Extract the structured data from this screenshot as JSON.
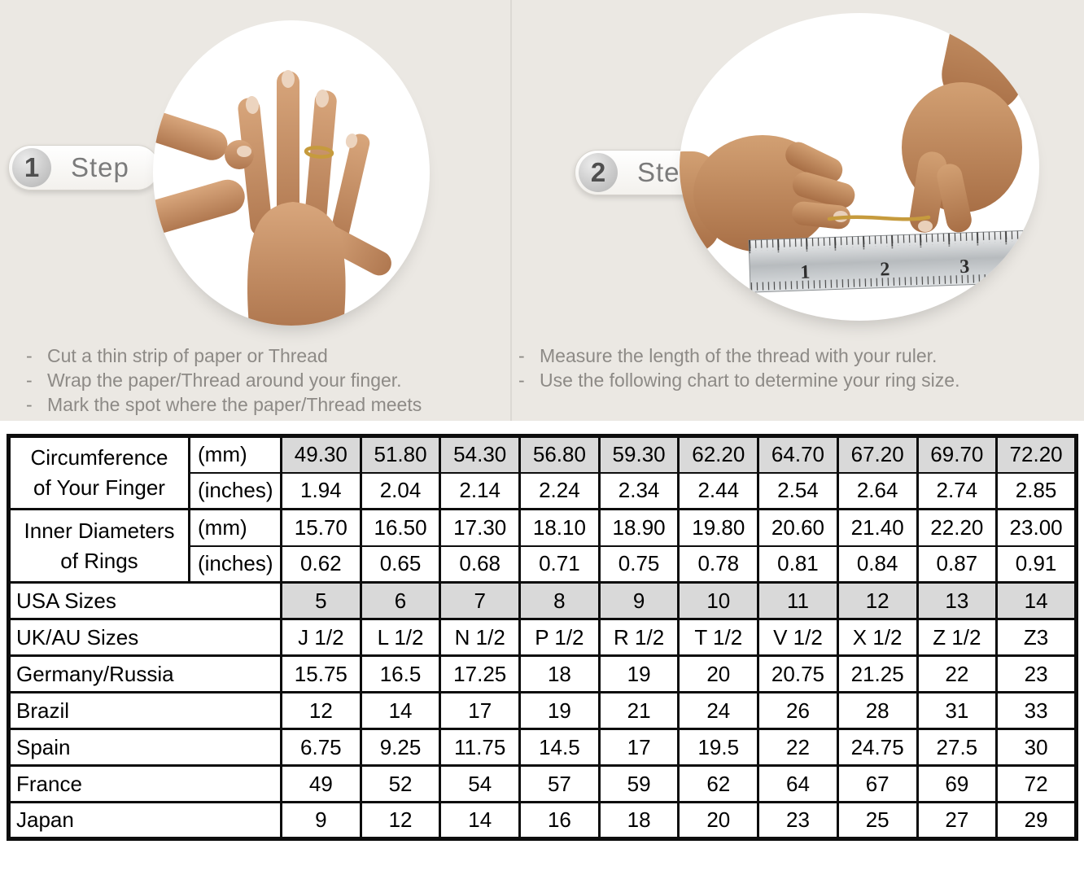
{
  "bullet_prefix": "-",
  "colors": {
    "page-bg": "#ffffff",
    "panel-bg": "#ebe8e3",
    "shade": "#d9d9d9",
    "border": "#0d0d0d",
    "text-gray": "#8d8a86",
    "step-gray": "#7b7b7b",
    "gold": "#c69b3d"
  },
  "steps": [
    {
      "number": "1",
      "label": "Step",
      "bullets": [
        "Cut a thin strip of paper or Thread",
        "Wrap the paper/Thread around your finger.",
        "Mark the spot where the paper/Thread meets"
      ]
    },
    {
      "number": "2",
      "label": "Step",
      "bullets": [
        "Measure the length of the thread with your ruler.",
        "Use the following chart to determine your ring size."
      ]
    }
  ],
  "illustrations": {
    "ruler_numbers": [
      "1",
      "2",
      "3"
    ]
  },
  "table": {
    "row_groups": [
      {
        "label_lines": [
          "Circumference",
          "of Your Finger"
        ],
        "rows": [
          {
            "unit": "(mm)",
            "shaded": true,
            "values": [
              "49.30",
              "51.80",
              "54.30",
              "56.80",
              "59.30",
              "62.20",
              "64.70",
              "67.20",
              "69.70",
              "72.20"
            ]
          },
          {
            "unit": "(inches)",
            "shaded": false,
            "values": [
              "1.94",
              "2.04",
              "2.14",
              "2.24",
              "2.34",
              "2.44",
              "2.54",
              "2.64",
              "2.74",
              "2.85"
            ]
          }
        ]
      },
      {
        "label_lines": [
          "Inner Diameters",
          "of Rings"
        ],
        "rows": [
          {
            "unit": "(mm)",
            "shaded": false,
            "values": [
              "15.70",
              "16.50",
              "17.30",
              "18.10",
              "18.90",
              "19.80",
              "20.60",
              "21.40",
              "22.20",
              "23.00"
            ]
          },
          {
            "unit": "(inches)",
            "shaded": false,
            "values": [
              "0.62",
              "0.65",
              "0.68",
              "0.71",
              "0.75",
              "0.78",
              "0.81",
              "0.84",
              "0.87",
              "0.91"
            ]
          }
        ]
      }
    ],
    "size_rows": [
      {
        "label": "USA Sizes",
        "shaded": true,
        "values": [
          "5",
          "6",
          "7",
          "8",
          "9",
          "10",
          "11",
          "12",
          "13",
          "14"
        ]
      },
      {
        "label": "UK/AU Sizes",
        "shaded": false,
        "values": [
          "J 1/2",
          "L 1/2",
          "N 1/2",
          "P 1/2",
          "R 1/2",
          "T 1/2",
          "V 1/2",
          "X 1/2",
          "Z 1/2",
          "Z3"
        ]
      },
      {
        "label": "Germany/Russia",
        "shaded": false,
        "values": [
          "15.75",
          "16.5",
          "17.25",
          "18",
          "19",
          "20",
          "20.75",
          "21.25",
          "22",
          "23"
        ]
      },
      {
        "label": "Brazil",
        "shaded": false,
        "values": [
          "12",
          "14",
          "17",
          "19",
          "21",
          "24",
          "26",
          "28",
          "31",
          "33"
        ]
      },
      {
        "label": "Spain",
        "shaded": false,
        "values": [
          "6.75",
          "9.25",
          "11.75",
          "14.5",
          "17",
          "19.5",
          "22",
          "24.75",
          "27.5",
          "30"
        ]
      },
      {
        "label": "France",
        "shaded": false,
        "values": [
          "49",
          "52",
          "54",
          "57",
          "59",
          "62",
          "64",
          "67",
          "69",
          "72"
        ]
      },
      {
        "label": "Japan",
        "shaded": false,
        "values": [
          "9",
          "12",
          "14",
          "16",
          "18",
          "20",
          "23",
          "25",
          "27",
          "29"
        ]
      }
    ]
  }
}
